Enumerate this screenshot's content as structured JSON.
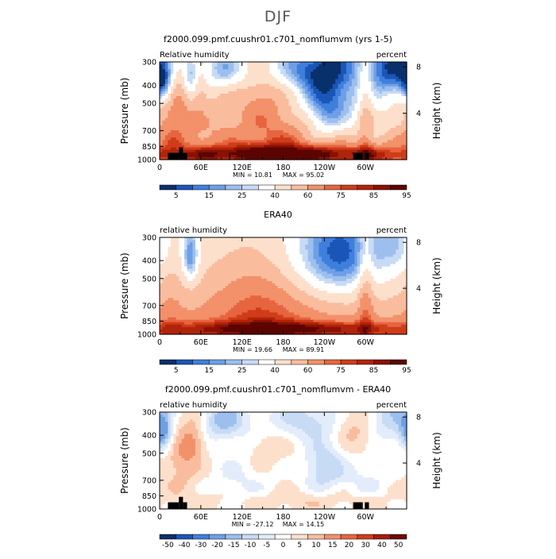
{
  "page": {
    "season": "DJF"
  },
  "colors": {
    "fill_levels": [
      "#08306b",
      "#1a56b8",
      "#3f7fdc",
      "#6e9fe6",
      "#9dbfee",
      "#c8dbf5",
      "#ffffff",
      "#fde0cc",
      "#f9bd9e",
      "#f2916a",
      "#e6653f",
      "#cf3c1a",
      "#b0240b",
      "#8a1104",
      "#5c0400"
    ],
    "diff_levels": [
      "#08306b",
      "#1a56b8",
      "#3f7fdc",
      "#6e9fe6",
      "#9dbfee",
      "#c8dbf5",
      "#e3ecfa",
      "#ffffff",
      "#fde0cc",
      "#f9bd9e",
      "#f2916a",
      "#e6653f",
      "#cf3c1a",
      "#a41d07",
      "#6e0a02"
    ],
    "topography": "#000000"
  },
  "chart_data": [
    {
      "type": "heatmap",
      "title": "f2000.099.pmf.cuushr01.c701_nomflumvm (yrs 1-5)",
      "left_label": "Relative humidity",
      "right_label": "percent",
      "ylabel": "Pressure (mb)",
      "y2label": "Height (km)",
      "x_ticks": [
        "0",
        "60E",
        "120E",
        "180",
        "120W",
        "60W"
      ],
      "y_ticks": [
        "300",
        "400",
        "500",
        "700",
        "850",
        "1000"
      ],
      "y2_ticks": [
        "8",
        "4"
      ],
      "min_label": "MIN =",
      "min_value": "10.81",
      "max_label": "MAX =",
      "max_value": "95.02",
      "colorbar_labels": [
        "5",
        "15",
        "25",
        "40",
        "60",
        "75",
        "85",
        "95"
      ],
      "field": "model"
    },
    {
      "type": "heatmap",
      "title": "ERA40",
      "left_label": "relative humidity",
      "right_label": "percent",
      "ylabel": "Pressure (mb)",
      "y2label": "Height (km)",
      "x_ticks": [
        "0",
        "60E",
        "120E",
        "180",
        "120W",
        "60W"
      ],
      "y_ticks": [
        "300",
        "400",
        "500",
        "700",
        "850",
        "1000"
      ],
      "y2_ticks": [
        "8",
        "4"
      ],
      "min_label": "MIN =",
      "min_value": "19.66",
      "max_label": "MAX =",
      "max_value": "89.91",
      "colorbar_labels": [
        "5",
        "15",
        "25",
        "40",
        "60",
        "75",
        "85",
        "95"
      ],
      "field": "obs"
    },
    {
      "type": "heatmap",
      "title": "f2000.099.pmf.cuushr01.c701_nomflumvm - ERA40",
      "left_label": "relative humidity",
      "right_label": "percent",
      "ylabel": "Pressure (mb)",
      "y2label": "Height (km)",
      "x_ticks": [
        "0",
        "60E",
        "120E",
        "180",
        "120W",
        "60W"
      ],
      "y_ticks": [
        "300",
        "400",
        "500",
        "700",
        "850",
        "1000"
      ],
      "y2_ticks": [
        "8",
        "4"
      ],
      "min_label": "MIN =",
      "min_value": "-27.12",
      "max_label": "MAX =",
      "max_value": "14.15",
      "colorbar_labels": [
        "-50",
        "-40",
        "-30",
        "-20",
        "-15",
        "-10",
        "-5",
        "0",
        "5",
        "10",
        "15",
        "20",
        "30",
        "40",
        "50"
      ],
      "field": "diff"
    }
  ]
}
